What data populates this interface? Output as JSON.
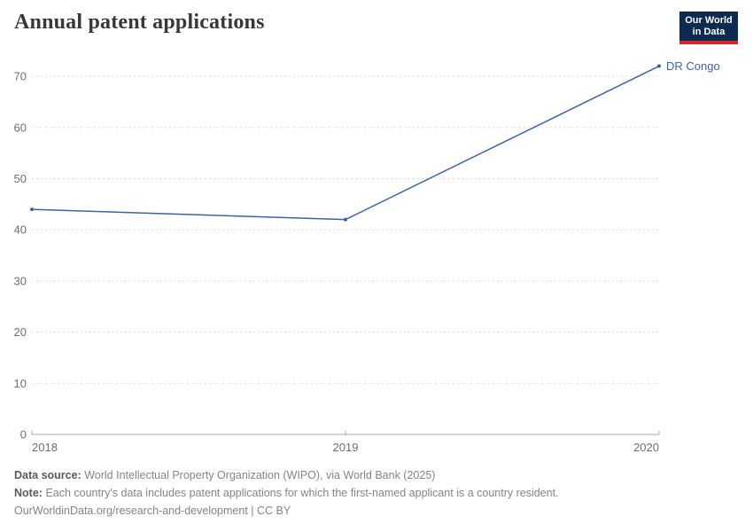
{
  "header": {
    "title": "Annual patent applications"
  },
  "logo": {
    "line1": "Our World",
    "line2": "in Data"
  },
  "chart_data": {
    "type": "line",
    "title": "Annual patent applications",
    "x": [
      2018,
      2019,
      2020
    ],
    "x_tick_labels": [
      "2018",
      "2019",
      "2020"
    ],
    "y_ticks": [
      0,
      10,
      20,
      30,
      40,
      50,
      60,
      70
    ],
    "ylim": [
      0,
      73
    ],
    "xlabel": "",
    "ylabel": "",
    "grid": "horizontal-dashed",
    "legend_position": "end-of-line-label",
    "series": [
      {
        "name": "DR Congo",
        "values": [
          44,
          42,
          72
        ],
        "color": "#3e639e"
      }
    ]
  },
  "colors": {
    "line": "#3e639e",
    "grid": "#dcdcdc",
    "axis": "#a8a8a8",
    "tick_text": "#6e6e6e",
    "logo_bg": "#0d2a51",
    "logo_accent": "#d8262c"
  },
  "footer": {
    "source_label": "Data source:",
    "source_text": "World Intellectual Property Organization (WIPO), via World Bank (2025)",
    "note_label": "Note:",
    "note_text": "Each country's data includes patent applications for which the first-named applicant is a country resident.",
    "license": "OurWorldinData.org/research-and-development | CC BY"
  }
}
